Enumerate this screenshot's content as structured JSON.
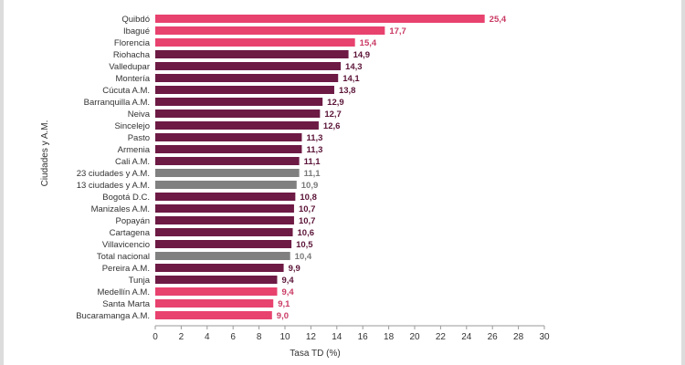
{
  "chart_data": {
    "type": "bar",
    "orientation": "horizontal",
    "ylabel": "Ciudades y A.M.",
    "xlabel": "Tasa TD (%)",
    "xlim": [
      0,
      30
    ],
    "xticks": [
      0,
      2,
      4,
      6,
      8,
      10,
      12,
      14,
      16,
      18,
      20,
      22,
      24,
      26,
      28,
      30
    ],
    "grid": false,
    "colors": {
      "pink": "#e8426f",
      "maroon": "#6d1a45",
      "gray": "#808080",
      "pink_label": "#c93a64",
      "maroon_label": "#5b1438",
      "gray_label": "#7a7a7a"
    },
    "categories": [
      "Quibdó",
      "Ibagué",
      "Florencia",
      "Riohacha",
      "Valledupar",
      "Montería",
      "Cúcuta A.M.",
      "Barranquilla A.M.",
      "Neiva",
      "Sincelejo",
      "Pasto",
      "Armenia",
      "Cali A.M.",
      "23 ciudades y A.M.",
      "13 ciudades y A.M.",
      "Bogotá D.C.",
      "Manizales A.M.",
      "Popayán",
      "Cartagena",
      "Villavicencio",
      "Total nacional",
      "Pereira A.M.",
      "Tunja",
      "Medellín A.M.",
      "Santa Marta",
      "Bucaramanga A.M."
    ],
    "values": [
      25.4,
      17.7,
      15.4,
      14.9,
      14.3,
      14.1,
      13.8,
      12.9,
      12.7,
      12.6,
      11.3,
      11.3,
      11.1,
      11.1,
      10.9,
      10.8,
      10.7,
      10.7,
      10.6,
      10.5,
      10.4,
      9.9,
      9.4,
      9.4,
      9.1,
      9.0
    ],
    "labels": [
      "25,4",
      "17,7",
      "15,4",
      "14,9",
      "14,3",
      "14,1",
      "13,8",
      "12,9",
      "12,7",
      "12,6",
      "11,3",
      "11,3",
      "11,1",
      "11,1",
      "10,9",
      "10,8",
      "10,7",
      "10,7",
      "10,6",
      "10,5",
      "10,4",
      "9,9",
      "9,4",
      "9,4",
      "9,1",
      "9,0"
    ],
    "color_groups": [
      "pink",
      "pink",
      "pink",
      "maroon",
      "maroon",
      "maroon",
      "maroon",
      "maroon",
      "maroon",
      "maroon",
      "maroon",
      "maroon",
      "maroon",
      "gray",
      "gray",
      "maroon",
      "maroon",
      "maroon",
      "maroon",
      "maroon",
      "gray",
      "maroon",
      "maroon",
      "pink",
      "pink",
      "pink"
    ]
  }
}
